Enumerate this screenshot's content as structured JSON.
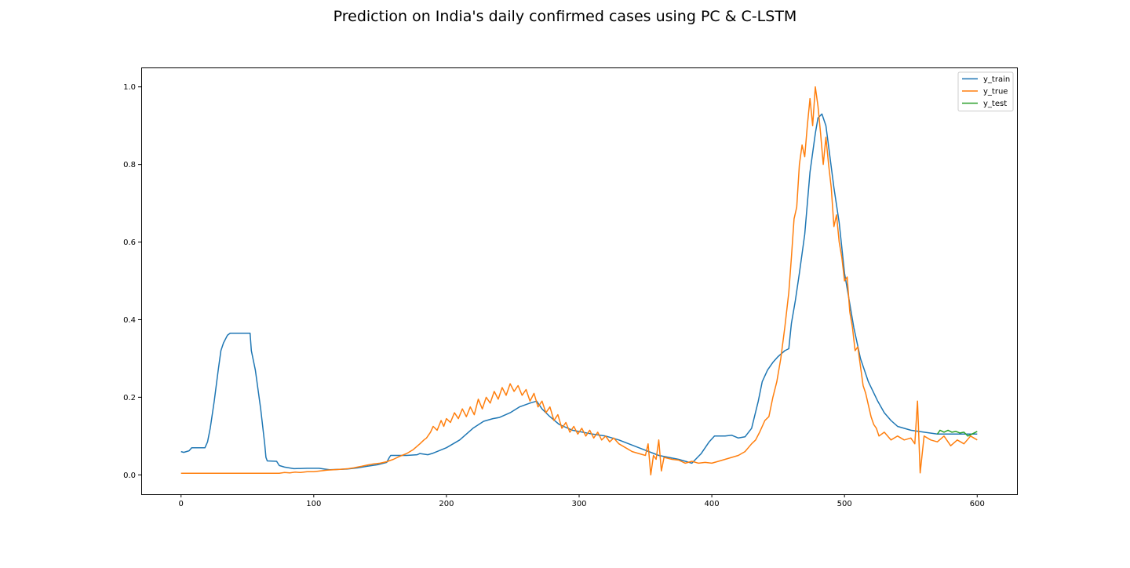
{
  "chart_data": {
    "type": "line",
    "title": "Prediction on India's daily confirmed cases using PC & C-LSTM",
    "xlabel": "",
    "ylabel": "",
    "xlim": [
      -30,
      630
    ],
    "ylim": [
      -0.05,
      1.05
    ],
    "xticks": [
      0,
      100,
      200,
      300,
      400,
      500,
      600
    ],
    "yticks": [
      0.0,
      0.2,
      0.4,
      0.6,
      0.8,
      1.0
    ],
    "xtick_labels": [
      "0",
      "100",
      "200",
      "300",
      "400",
      "500",
      "600"
    ],
    "ytick_labels": [
      "0.0",
      "0.2",
      "0.4",
      "0.6",
      "0.8",
      "1.0"
    ],
    "grid": false,
    "legend_position": "top-right",
    "series": [
      {
        "name": "y_train",
        "color": "#1f77b4",
        "points": [
          [
            0,
            0.06
          ],
          [
            2,
            0.058
          ],
          [
            6,
            0.062
          ],
          [
            8,
            0.07
          ],
          [
            18,
            0.07
          ],
          [
            20,
            0.085
          ],
          [
            22,
            0.12
          ],
          [
            25,
            0.19
          ],
          [
            28,
            0.27
          ],
          [
            30,
            0.32
          ],
          [
            32,
            0.34
          ],
          [
            35,
            0.36
          ],
          [
            37,
            0.365
          ],
          [
            52,
            0.365
          ],
          [
            53,
            0.32
          ],
          [
            56,
            0.27
          ],
          [
            60,
            0.17
          ],
          [
            63,
            0.08
          ],
          [
            64,
            0.045
          ],
          [
            65,
            0.036
          ],
          [
            72,
            0.035
          ],
          [
            74,
            0.024
          ],
          [
            78,
            0.02
          ],
          [
            85,
            0.016
          ],
          [
            95,
            0.017
          ],
          [
            104,
            0.017
          ],
          [
            108,
            0.015
          ],
          [
            112,
            0.013
          ],
          [
            125,
            0.015
          ],
          [
            133,
            0.018
          ],
          [
            140,
            0.022
          ],
          [
            148,
            0.026
          ],
          [
            155,
            0.032
          ],
          [
            157,
            0.045
          ],
          [
            158,
            0.05
          ],
          [
            162,
            0.05
          ],
          [
            170,
            0.05
          ],
          [
            178,
            0.052
          ],
          [
            180,
            0.055
          ],
          [
            186,
            0.052
          ],
          [
            190,
            0.056
          ],
          [
            200,
            0.07
          ],
          [
            210,
            0.09
          ],
          [
            220,
            0.12
          ],
          [
            228,
            0.138
          ],
          [
            235,
            0.145
          ],
          [
            240,
            0.148
          ],
          [
            248,
            0.16
          ],
          [
            255,
            0.175
          ],
          [
            263,
            0.185
          ],
          [
            268,
            0.19
          ],
          [
            272,
            0.17
          ],
          [
            278,
            0.15
          ],
          [
            285,
            0.13
          ],
          [
            295,
            0.115
          ],
          [
            310,
            0.105
          ],
          [
            320,
            0.1
          ],
          [
            330,
            0.09
          ],
          [
            345,
            0.07
          ],
          [
            360,
            0.05
          ],
          [
            375,
            0.04
          ],
          [
            385,
            0.03
          ],
          [
            392,
            0.055
          ],
          [
            398,
            0.085
          ],
          [
            402,
            0.1
          ],
          [
            410,
            0.1
          ],
          [
            415,
            0.102
          ],
          [
            420,
            0.095
          ],
          [
            425,
            0.098
          ],
          [
            430,
            0.12
          ],
          [
            435,
            0.19
          ],
          [
            438,
            0.24
          ],
          [
            442,
            0.27
          ],
          [
            446,
            0.29
          ],
          [
            450,
            0.305
          ],
          [
            455,
            0.32
          ],
          [
            458,
            0.325
          ],
          [
            460,
            0.39
          ],
          [
            463,
            0.45
          ],
          [
            466,
            0.52
          ],
          [
            470,
            0.62
          ],
          [
            474,
            0.78
          ],
          [
            478,
            0.88
          ],
          [
            480,
            0.92
          ],
          [
            483,
            0.93
          ],
          [
            486,
            0.9
          ],
          [
            489,
            0.82
          ],
          [
            492,
            0.74
          ],
          [
            496,
            0.65
          ],
          [
            500,
            0.52
          ],
          [
            503,
            0.46
          ],
          [
            507,
            0.38
          ],
          [
            512,
            0.3
          ],
          [
            518,
            0.24
          ],
          [
            525,
            0.19
          ],
          [
            530,
            0.16
          ],
          [
            535,
            0.14
          ],
          [
            540,
            0.125
          ],
          [
            550,
            0.115
          ],
          [
            560,
            0.11
          ],
          [
            570,
            0.105
          ],
          [
            580,
            0.105
          ],
          [
            590,
            0.105
          ],
          [
            600,
            0.105
          ]
        ]
      },
      {
        "name": "y_true",
        "color": "#ff7f0e",
        "points": [
          [
            0,
            0.004
          ],
          [
            50,
            0.004
          ],
          [
            74,
            0.004
          ],
          [
            78,
            0.006
          ],
          [
            82,
            0.005
          ],
          [
            86,
            0.007
          ],
          [
            90,
            0.006
          ],
          [
            95,
            0.008
          ],
          [
            100,
            0.008
          ],
          [
            105,
            0.01
          ],
          [
            110,
            0.012
          ],
          [
            115,
            0.013
          ],
          [
            120,
            0.014
          ],
          [
            126,
            0.016
          ],
          [
            130,
            0.018
          ],
          [
            136,
            0.022
          ],
          [
            140,
            0.025
          ],
          [
            145,
            0.028
          ],
          [
            150,
            0.03
          ],
          [
            155,
            0.034
          ],
          [
            160,
            0.04
          ],
          [
            165,
            0.048
          ],
          [
            170,
            0.055
          ],
          [
            175,
            0.065
          ],
          [
            180,
            0.08
          ],
          [
            183,
            0.09
          ],
          [
            185,
            0.095
          ],
          [
            188,
            0.11
          ],
          [
            190,
            0.125
          ],
          [
            193,
            0.115
          ],
          [
            196,
            0.14
          ],
          [
            198,
            0.125
          ],
          [
            200,
            0.145
          ],
          [
            203,
            0.135
          ],
          [
            206,
            0.16
          ],
          [
            209,
            0.145
          ],
          [
            212,
            0.17
          ],
          [
            215,
            0.15
          ],
          [
            218,
            0.175
          ],
          [
            221,
            0.155
          ],
          [
            224,
            0.195
          ],
          [
            227,
            0.17
          ],
          [
            230,
            0.2
          ],
          [
            233,
            0.185
          ],
          [
            236,
            0.215
          ],
          [
            239,
            0.195
          ],
          [
            242,
            0.225
          ],
          [
            245,
            0.205
          ],
          [
            248,
            0.235
          ],
          [
            251,
            0.215
          ],
          [
            254,
            0.23
          ],
          [
            257,
            0.205
          ],
          [
            260,
            0.22
          ],
          [
            263,
            0.19
          ],
          [
            266,
            0.21
          ],
          [
            269,
            0.175
          ],
          [
            272,
            0.19
          ],
          [
            275,
            0.16
          ],
          [
            278,
            0.175
          ],
          [
            281,
            0.14
          ],
          [
            284,
            0.155
          ],
          [
            287,
            0.12
          ],
          [
            290,
            0.135
          ],
          [
            293,
            0.11
          ],
          [
            296,
            0.125
          ],
          [
            299,
            0.105
          ],
          [
            302,
            0.12
          ],
          [
            305,
            0.1
          ],
          [
            308,
            0.115
          ],
          [
            311,
            0.095
          ],
          [
            314,
            0.11
          ],
          [
            317,
            0.09
          ],
          [
            320,
            0.1
          ],
          [
            323,
            0.085
          ],
          [
            326,
            0.095
          ],
          [
            330,
            0.08
          ],
          [
            335,
            0.07
          ],
          [
            340,
            0.06
          ],
          [
            345,
            0.055
          ],
          [
            350,
            0.05
          ],
          [
            352,
            0.08
          ],
          [
            354,
            0.0
          ],
          [
            356,
            0.05
          ],
          [
            358,
            0.04
          ],
          [
            360,
            0.09
          ],
          [
            362,
            0.01
          ],
          [
            364,
            0.045
          ],
          [
            370,
            0.04
          ],
          [
            375,
            0.038
          ],
          [
            380,
            0.03
          ],
          [
            385,
            0.035
          ],
          [
            390,
            0.03
          ],
          [
            395,
            0.032
          ],
          [
            400,
            0.03
          ],
          [
            405,
            0.035
          ],
          [
            410,
            0.04
          ],
          [
            415,
            0.045
          ],
          [
            420,
            0.05
          ],
          [
            425,
            0.06
          ],
          [
            430,
            0.08
          ],
          [
            433,
            0.09
          ],
          [
            436,
            0.11
          ],
          [
            440,
            0.14
          ],
          [
            443,
            0.15
          ],
          [
            446,
            0.2
          ],
          [
            449,
            0.24
          ],
          [
            452,
            0.3
          ],
          [
            455,
            0.38
          ],
          [
            458,
            0.47
          ],
          [
            460,
            0.56
          ],
          [
            462,
            0.66
          ],
          [
            464,
            0.69
          ],
          [
            466,
            0.8
          ],
          [
            468,
            0.85
          ],
          [
            470,
            0.82
          ],
          [
            472,
            0.9
          ],
          [
            474,
            0.97
          ],
          [
            476,
            0.9
          ],
          [
            478,
            1.0
          ],
          [
            480,
            0.95
          ],
          [
            482,
            0.88
          ],
          [
            484,
            0.8
          ],
          [
            486,
            0.87
          ],
          [
            488,
            0.8
          ],
          [
            490,
            0.74
          ],
          [
            492,
            0.64
          ],
          [
            494,
            0.67
          ],
          [
            496,
            0.6
          ],
          [
            498,
            0.56
          ],
          [
            500,
            0.5
          ],
          [
            502,
            0.51
          ],
          [
            504,
            0.42
          ],
          [
            506,
            0.38
          ],
          [
            508,
            0.32
          ],
          [
            510,
            0.33
          ],
          [
            512,
            0.28
          ],
          [
            514,
            0.23
          ],
          [
            516,
            0.21
          ],
          [
            518,
            0.18
          ],
          [
            520,
            0.15
          ],
          [
            522,
            0.13
          ],
          [
            524,
            0.12
          ],
          [
            526,
            0.1
          ],
          [
            530,
            0.11
          ],
          [
            535,
            0.09
          ],
          [
            540,
            0.1
          ],
          [
            545,
            0.09
          ],
          [
            550,
            0.095
          ],
          [
            553,
            0.08
          ],
          [
            555,
            0.19
          ],
          [
            557,
            0.005
          ],
          [
            560,
            0.1
          ],
          [
            565,
            0.09
          ],
          [
            570,
            0.085
          ],
          [
            575,
            0.1
          ],
          [
            580,
            0.075
          ],
          [
            585,
            0.09
          ],
          [
            590,
            0.08
          ],
          [
            595,
            0.1
          ],
          [
            600,
            0.09
          ]
        ]
      },
      {
        "name": "y_test",
        "color": "#2ca02c",
        "points": [
          [
            570,
            0.105
          ],
          [
            572,
            0.115
          ],
          [
            575,
            0.11
          ],
          [
            578,
            0.115
          ],
          [
            581,
            0.11
          ],
          [
            584,
            0.112
          ],
          [
            587,
            0.108
          ],
          [
            590,
            0.11
          ],
          [
            593,
            0.1
          ],
          [
            596,
            0.105
          ],
          [
            600,
            0.112
          ]
        ]
      }
    ]
  }
}
